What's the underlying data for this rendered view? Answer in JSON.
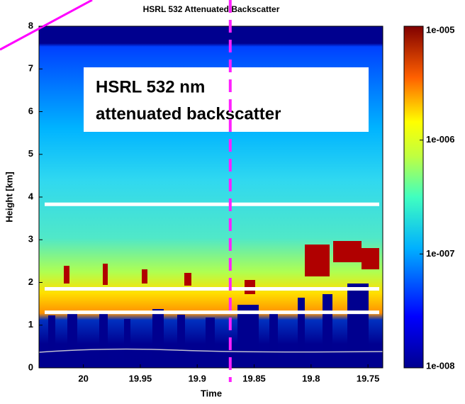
{
  "chart_data": {
    "type": "heatmap",
    "title": "HSRL 532 Attenuated Backscatter",
    "xlabel": "Time",
    "ylabel": "Height [km]",
    "annotation": [
      "HSRL 532 nm",
      "attenuated backscatter"
    ],
    "xlim": [
      20.039,
      19.737
    ],
    "xticks": [
      20,
      19.95,
      19.9,
      19.85,
      19.8,
      19.75
    ],
    "ylim": [
      0,
      8
    ],
    "yticks": [
      0,
      1,
      2,
      3,
      4,
      5,
      6,
      7,
      8
    ],
    "colorbar": {
      "scale": "log",
      "lim": [
        1e-08,
        1e-05
      ],
      "ticks": [
        {
          "value": 1e-08,
          "label": "1e-008"
        },
        {
          "value": 1e-07,
          "label": "1e-007"
        },
        {
          "value": 1e-06,
          "label": "1e-006"
        },
        {
          "value": 1e-05,
          "label": "1e-005"
        }
      ]
    },
    "reference_heights": [
      3.83,
      1.85,
      1.3
    ],
    "reference_time": 19.871
  }
}
